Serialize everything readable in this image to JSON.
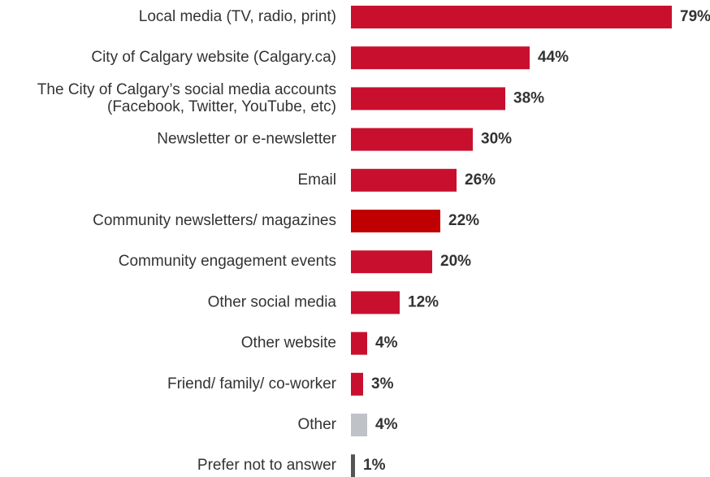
{
  "chart_data": {
    "type": "bar",
    "orientation": "horizontal",
    "categories": [
      [
        "Local media (TV, radio, print)"
      ],
      [
        "City of Calgary website (Calgary.ca)"
      ],
      [
        "The City of Calgary’s social media accounts",
        "(Facebook, Twitter, YouTube, etc)"
      ],
      [
        "Newsletter or e-newsletter"
      ],
      [
        "Email"
      ],
      [
        "Community newsletters/ magazines"
      ],
      [
        "Community engagement events"
      ],
      [
        "Other social media"
      ],
      [
        "Other website"
      ],
      [
        "Friend/ family/ co-worker"
      ],
      [
        "Other"
      ],
      [
        "Prefer not to answer"
      ]
    ],
    "values": [
      79,
      44,
      38,
      30,
      26,
      22,
      20,
      12,
      4,
      3,
      4,
      1
    ],
    "value_labels": [
      "79%",
      "44%",
      "38%",
      "30%",
      "26%",
      "22%",
      "20%",
      "12%",
      "4%",
      "3%",
      "4%",
      "1%"
    ],
    "colors": [
      "#c8102e",
      "#c8102e",
      "#c8102e",
      "#c8102e",
      "#c8102e",
      "#c00000",
      "#c8102e",
      "#c8102e",
      "#c8102e",
      "#c8102e",
      "#bfc3c8",
      "#555555"
    ],
    "unit": "%",
    "xlim": [
      0,
      100
    ],
    "grid": false,
    "legend": "none"
  }
}
